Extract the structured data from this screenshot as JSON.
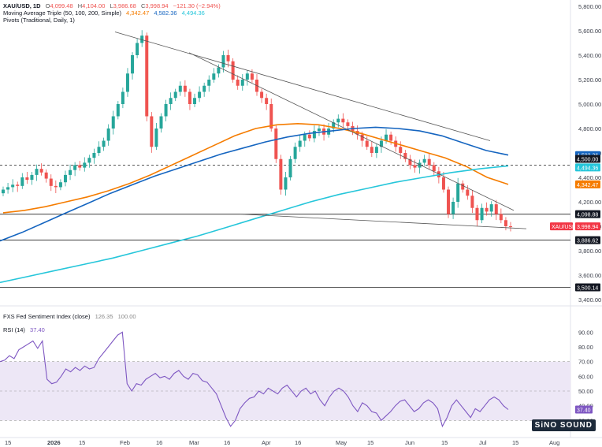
{
  "header": {
    "symbol": "XAU/USD, 1D",
    "o_label": "O",
    "o": "4,099.48",
    "h_label": "H",
    "h": "4,104.00",
    "l_label": "L",
    "l": "3,986.68",
    "c_label": "C",
    "c": "3,998.94",
    "change": "−121.30 (−2.94%)",
    "ma_label": "Moving Average Triple (50, 100, 200, Simple)",
    "ma50": "4,342.47",
    "ma100": "4,582.36",
    "ma200": "4,494.36",
    "pivots_label": "Pivots (Traditional, Daily, 1)",
    "fxs_label": "FXS Fed Sentiment Index (close)",
    "fxs_value": "126.35",
    "fxs_level": "100.00",
    "rsi_label": "RSI (14)",
    "rsi_value": "37.40"
  },
  "colors": {
    "up": "#26a69a",
    "down": "#ef5350",
    "ma50": "#f57c00",
    "ma100": "#1565c0",
    "ma200": "#26c6da",
    "rsi": "#7e57c2",
    "rsi_band": "#ede7f6",
    "trend": "#555555",
    "pivot": "#222222",
    "price_badge": "#f23645"
  },
  "watermark": "SiNO SOUND",
  "chart_data": [
    {
      "type": "candlestick",
      "title": "XAU/USD, 1D",
      "ylim": [
        3400,
        5800
      ],
      "yticks": [
        "3,400.00",
        "3,600.00",
        "3,800.00",
        "4,000.00",
        "4,200.00",
        "4,400.00",
        "4,600.00",
        "4,800.00",
        "5,000.00",
        "5,200.00",
        "5,400.00",
        "5,600.00",
        "5,800.00"
      ],
      "x_labels": [
        "15",
        "2026",
        "15",
        "Feb",
        "16",
        "Mar",
        "16",
        "Apr",
        "16",
        "May",
        "15",
        "Jun",
        "15",
        "Jul",
        "15",
        "Aug"
      ],
      "close_path": [
        4300,
        4320,
        4340,
        4330,
        4400,
        4380,
        4420,
        4470,
        4440,
        4390,
        4330,
        4320,
        4360,
        4420,
        4460,
        4500,
        4480,
        4520,
        4560,
        4600,
        4650,
        4700,
        4800,
        4900,
        5000,
        5100,
        5250,
        5400,
        5500,
        5560,
        4900,
        4650,
        4800,
        4900,
        5000,
        5050,
        5100,
        5150,
        5100,
        5000,
        5050,
        5100,
        5150,
        5200,
        5250,
        5300,
        5400,
        5350,
        5200,
        5150,
        5200,
        5250,
        5200,
        5100,
        5050,
        5000,
        4800,
        4550,
        4300,
        4400,
        4550,
        4650,
        4700,
        4750,
        4720,
        4780,
        4800,
        4750,
        4800,
        4850,
        4880,
        4850,
        4820,
        4780,
        4750,
        4700,
        4650,
        4600,
        4650,
        4700,
        4750,
        4700,
        4650,
        4600,
        4550,
        4500,
        4480,
        4520,
        4550,
        4500,
        4450,
        4400,
        4300,
        4100,
        4200,
        4350,
        4300,
        4250,
        4150,
        4050,
        4150,
        4120,
        4180,
        4100,
        4050,
        4000,
        3998.94
      ],
      "ma50": [
        4110,
        4130,
        4160,
        4200,
        4240,
        4290,
        4350,
        4420,
        4500,
        4580,
        4660,
        4740,
        4800,
        4830,
        4840,
        4830,
        4800,
        4760,
        4710,
        4660,
        4610,
        4560,
        4490,
        4400,
        4342.47
      ],
      "ma100": [
        3880,
        3950,
        4030,
        4110,
        4190,
        4270,
        4340,
        4410,
        4470,
        4530,
        4590,
        4640,
        4690,
        4730,
        4760,
        4780,
        4800,
        4810,
        4800,
        4780,
        4740,
        4680,
        4620,
        4582.36
      ],
      "ma200": [
        3540,
        3590,
        3640,
        3690,
        3740,
        3800,
        3860,
        3920,
        3990,
        4060,
        4130,
        4200,
        4260,
        4310,
        4360,
        4400,
        4440,
        4470,
        4494.36
      ],
      "pivot_levels": [
        {
          "value": 4500.0,
          "label": "4,500.00",
          "style": "dashed"
        },
        {
          "value": 4098.88,
          "label": "4,098.88",
          "style": "solid"
        },
        {
          "value": 3886.62,
          "label": "3,886.62",
          "style": "solid"
        },
        {
          "value": 3500.14,
          "label": "3,500.14",
          "style": "solid"
        }
      ],
      "price_badges": [
        {
          "label": "4,582.36",
          "series": "ma100"
        },
        {
          "label": "4,500.00",
          "series": "pivot"
        },
        {
          "label": "4,494.36",
          "series": "ma200"
        },
        {
          "label": "4,342.47",
          "series": "ma50"
        },
        {
          "label": "4,098.88",
          "series": "pivot"
        },
        {
          "label": "XAU/USD",
          "series": "price"
        },
        {
          "label": "3,998.94",
          "series": "price"
        },
        {
          "label": "3,886.62",
          "series": "pivot"
        },
        {
          "label": "3,500.14",
          "series": "pivot"
        }
      ]
    },
    {
      "type": "line",
      "title": "RSI (14)",
      "ylim": [
        20,
        95
      ],
      "yticks": [
        "90.00",
        "80.00",
        "70.00",
        "60.00",
        "50.00",
        "40.00",
        "30.00"
      ],
      "band": [
        30,
        70
      ],
      "midline": 50,
      "values": [
        70,
        71,
        74,
        72,
        78,
        80,
        82,
        84,
        79,
        84,
        58,
        55,
        56,
        60,
        65,
        63,
        66,
        64,
        67,
        65,
        66,
        72,
        76,
        80,
        84,
        88,
        90,
        55,
        50,
        55,
        54,
        58,
        60,
        62,
        59,
        60,
        58,
        62,
        64,
        60,
        58,
        62,
        61,
        57,
        56,
        52,
        48,
        40,
        32,
        26,
        30,
        38,
        42,
        45,
        46,
        50,
        48,
        52,
        50,
        48,
        52,
        54,
        50,
        46,
        50,
        52,
        48,
        50,
        44,
        40,
        46,
        50,
        52,
        50,
        46,
        40,
        36,
        42,
        40,
        36,
        35,
        30,
        33,
        36,
        40,
        43,
        44,
        40,
        36,
        38,
        42,
        44,
        42,
        38,
        26,
        32,
        40,
        44,
        40,
        36,
        32,
        38,
        36,
        40,
        44,
        46,
        44,
        40,
        37.4
      ],
      "current": "37.40"
    }
  ]
}
